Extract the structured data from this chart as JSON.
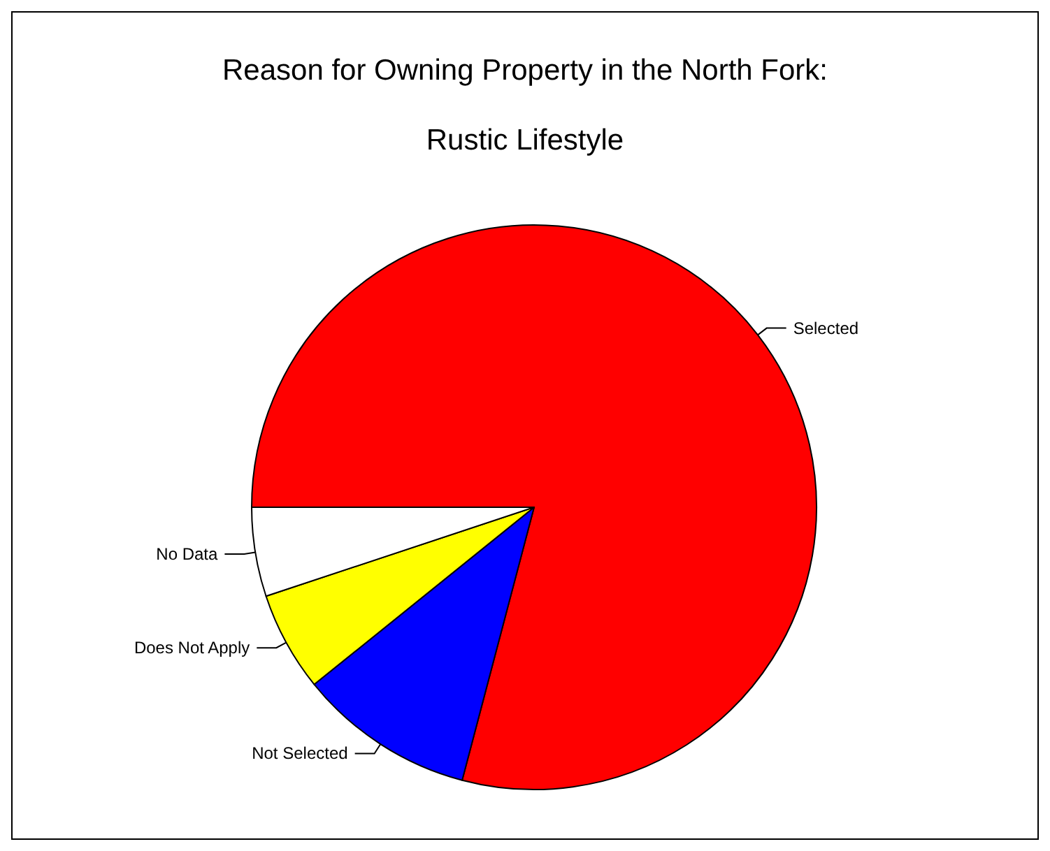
{
  "chart_data": {
    "type": "pie",
    "title": "Reason for Owning Property in the North Fork:",
    "subtitle": "Rustic Lifestyle",
    "categories": [
      "Selected",
      "Not Selected",
      "Does Not Apply",
      "No Data"
    ],
    "values": [
      79.1,
      10.1,
      5.7,
      5.1
    ],
    "colors": [
      "#ff0000",
      "#0000ff",
      "#ffff00",
      "#ffffff"
    ],
    "legend": false
  }
}
